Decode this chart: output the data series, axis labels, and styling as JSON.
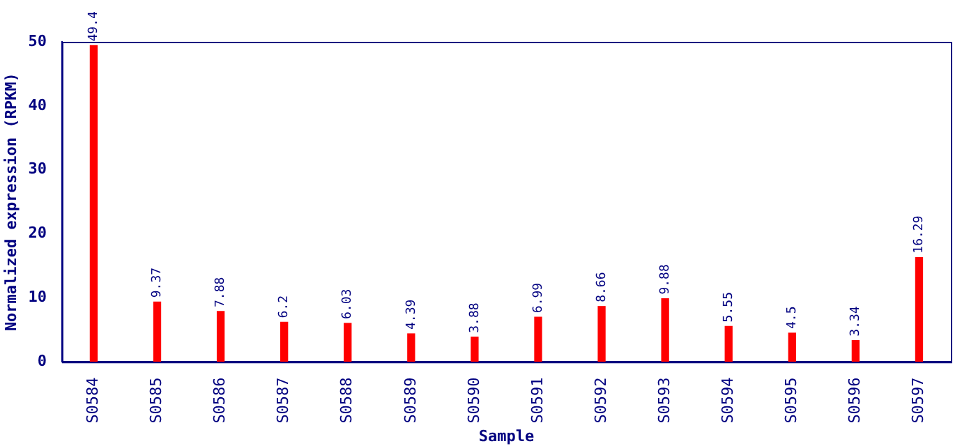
{
  "chart_data": {
    "type": "bar",
    "xlabel": "Sample",
    "ylabel": "Normalized expression (RPKM)",
    "categories": [
      "S0584",
      "S0585",
      "S0586",
      "S0587",
      "S0588",
      "S0589",
      "S0590",
      "S0591",
      "S0592",
      "S0593",
      "S0594",
      "S0595",
      "S0596",
      "S0597"
    ],
    "values": [
      49.4,
      9.37,
      7.88,
      6.2,
      6.03,
      4.39,
      3.88,
      6.99,
      8.66,
      9.88,
      5.55,
      4.5,
      3.34,
      16.29
    ],
    "color": "#ff0000",
    "ylim": [
      0,
      50
    ],
    "yticks": [
      0,
      10,
      20,
      30,
      40,
      50
    ],
    "data_labels": true,
    "grid": false,
    "legend": false
  }
}
